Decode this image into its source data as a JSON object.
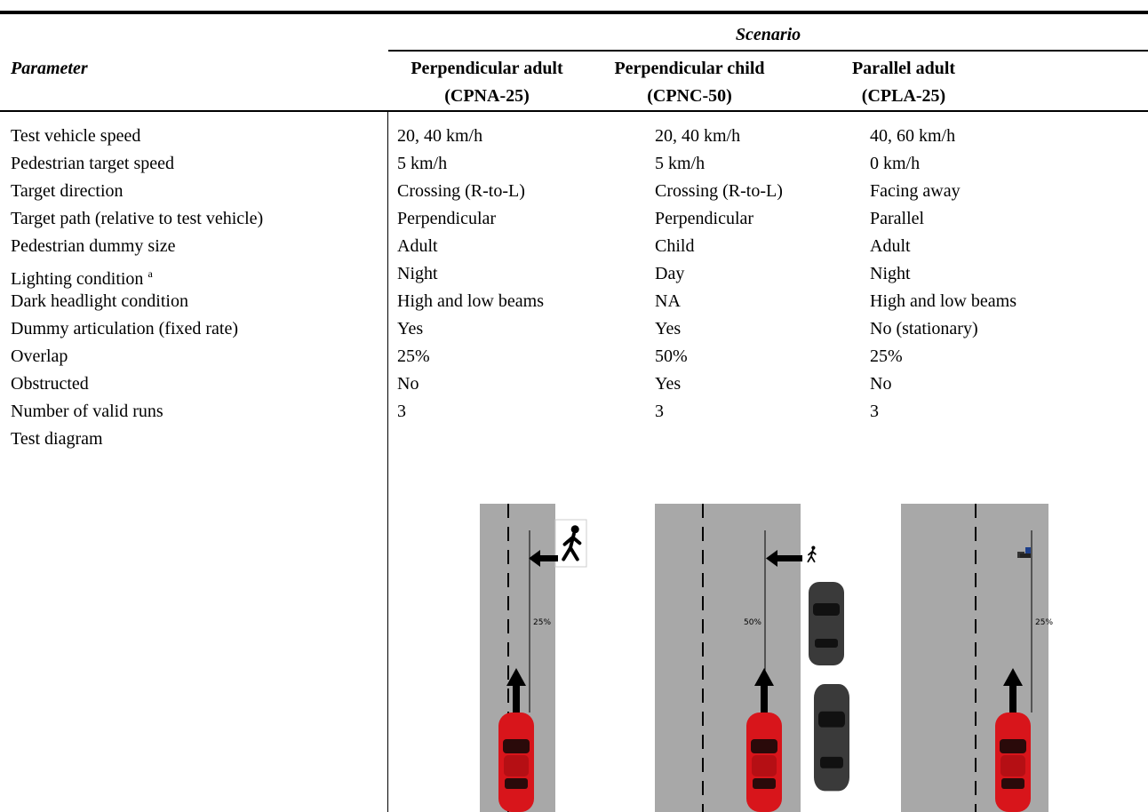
{
  "header": {
    "group_title": "Scenario",
    "parameter_title": "Parameter",
    "columns": [
      {
        "name": "Perpendicular adult",
        "code": "(CPNA-25)"
      },
      {
        "name": "Perpendicular child",
        "code": "(CPNC-50)"
      },
      {
        "name": "Parallel adult",
        "code": "(CPLA-25)"
      }
    ]
  },
  "rows": [
    {
      "label": "Test vehicle speed",
      "cells": [
        "20, 40 km/h",
        "20, 40 km/h",
        "40, 60 km/h"
      ]
    },
    {
      "label": "Pedestrian target speed",
      "cells": [
        "5 km/h",
        "5 km/h",
        "0 km/h"
      ]
    },
    {
      "label": "Target direction",
      "cells": [
        "Crossing (R-to-L)",
        "Crossing (R-to-L)",
        "Facing away"
      ]
    },
    {
      "label": "Target path (relative to test vehicle)",
      "cells": [
        "Perpendicular",
        "Perpendicular",
        "Parallel"
      ]
    },
    {
      "label": "Pedestrian dummy size",
      "cells": [
        "Adult",
        "Child",
        "Adult"
      ]
    },
    {
      "label": "Lighting condition",
      "footnote_mark": "a",
      "cells": [
        "Night",
        "Day",
        "Night"
      ]
    },
    {
      "label": "Dark headlight condition",
      "cells": [
        "High and low beams",
        "NA",
        "High and low beams"
      ]
    },
    {
      "label": "Dummy articulation (fixed rate)",
      "cells": [
        "Yes",
        "Yes",
        "No (stationary)"
      ]
    },
    {
      "label": "Overlap",
      "cells": [
        "25%",
        "50%",
        "25%"
      ]
    },
    {
      "label": "Obstructed",
      "cells": [
        "No",
        "Yes",
        "No"
      ]
    },
    {
      "label": "Number of valid runs",
      "cells": [
        "3",
        "3",
        "3"
      ]
    }
  ],
  "diagram_row": {
    "label": "Test diagram",
    "overlap_labels": [
      "25%",
      "50%",
      "25%"
    ]
  }
}
